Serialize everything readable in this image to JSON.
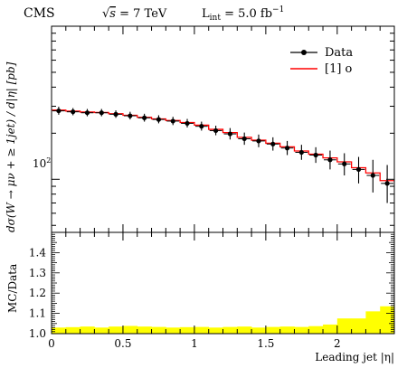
{
  "header": {
    "experiment": "CMS",
    "energy_prefix": "√",
    "energy_symbol": "s",
    "energy_rest": " = 7 TeV",
    "lumi_prefix": "L",
    "lumi_sub": "int",
    "lumi_value": " = 5.0 fb",
    "lumi_sup": "−1"
  },
  "colors": {
    "data_points": "#000000",
    "mc_line": "#ff0000",
    "ratio_band": "#ffff00",
    "axes": "#000000"
  },
  "chart_data": [
    {
      "type": "line",
      "panel": "main",
      "ylabel": "dσ(W → μν + ≥ 1jet) / d|η| [pb]",
      "yscale": "log",
      "ylim": [
        45,
        1000
      ],
      "xlim": [
        0,
        2.4
      ],
      "ytick_labels": [
        {
          "value": 100,
          "label": "10",
          "sup": "2"
        }
      ],
      "legend": {
        "position": "top-right",
        "entries": [
          {
            "label": "Data",
            "marker": "point"
          },
          {
            "label": "[1] o",
            "marker": "line"
          }
        ]
      },
      "bin_edges": [
        0,
        0.1,
        0.2,
        0.3,
        0.4,
        0.5,
        0.6,
        0.7,
        0.8,
        0.9,
        1.0,
        1.1,
        1.2,
        1.3,
        1.4,
        1.5,
        1.6,
        1.7,
        1.8,
        1.9,
        2.0,
        2.1,
        2.2,
        2.3,
        2.4
      ],
      "series": [
        {
          "name": "Data",
          "style": "points",
          "x": [
            0.05,
            0.15,
            0.25,
            0.35,
            0.45,
            0.55,
            0.65,
            0.75,
            0.85,
            0.95,
            1.05,
            1.15,
            1.25,
            1.35,
            1.45,
            1.55,
            1.65,
            1.75,
            1.85,
            1.95,
            2.05,
            2.15,
            2.25,
            2.35
          ],
          "values": [
            280,
            276,
            272,
            272,
            266,
            260,
            252,
            246,
            240,
            232,
            222,
            208,
            198,
            184,
            178,
            170,
            160,
            150,
            144,
            134,
            126,
            116,
            106,
            94
          ],
          "err_low": [
            16,
            14,
            14,
            14,
            14,
            14,
            14,
            14,
            14,
            14,
            14,
            14,
            16,
            16,
            16,
            16,
            16,
            16,
            16,
            18,
            20,
            22,
            24,
            24
          ],
          "err_high": [
            18,
            16,
            16,
            16,
            16,
            16,
            16,
            16,
            16,
            16,
            16,
            16,
            18,
            18,
            18,
            18,
            18,
            18,
            18,
            20,
            22,
            24,
            28,
            30
          ]
        },
        {
          "name": "[1] o",
          "style": "step",
          "values": [
            283,
            279,
            275,
            273,
            268,
            262,
            254,
            248,
            242,
            235,
            226,
            212,
            202,
            188,
            180,
            172,
            163,
            153,
            146,
            138,
            130,
            119,
            110,
            98
          ]
        }
      ]
    },
    {
      "type": "bar",
      "panel": "ratio",
      "ylabel": "MC/Data",
      "xlabel": "Leading jet |η|",
      "ylim": [
        1.0,
        1.5
      ],
      "xlim": [
        0,
        2.4
      ],
      "yticks": [
        1.0,
        1.1,
        1.2,
        1.3,
        1.4
      ],
      "ytick_labels": [
        "1.0",
        "1.1",
        "1.2",
        "1.3",
        "1.4"
      ],
      "xticks": [
        0,
        0.5,
        1,
        1.5,
        2
      ],
      "xtick_labels": [
        "0",
        "0.5",
        "1",
        "1.5",
        "2"
      ],
      "bin_edges": [
        0,
        0.1,
        0.2,
        0.3,
        0.4,
        0.5,
        0.6,
        0.7,
        0.8,
        0.9,
        1.0,
        1.1,
        1.2,
        1.3,
        1.4,
        1.5,
        1.6,
        1.7,
        1.8,
        1.9,
        2.0,
        2.1,
        2.2,
        2.3,
        2.4
      ],
      "band_upper": [
        1.03,
        1.032,
        1.035,
        1.03,
        1.035,
        1.038,
        1.035,
        1.033,
        1.03,
        1.032,
        1.033,
        1.03,
        1.033,
        1.035,
        1.03,
        1.033,
        1.035,
        1.033,
        1.037,
        1.045,
        1.075,
        1.075,
        1.11,
        1.135
      ]
    }
  ]
}
